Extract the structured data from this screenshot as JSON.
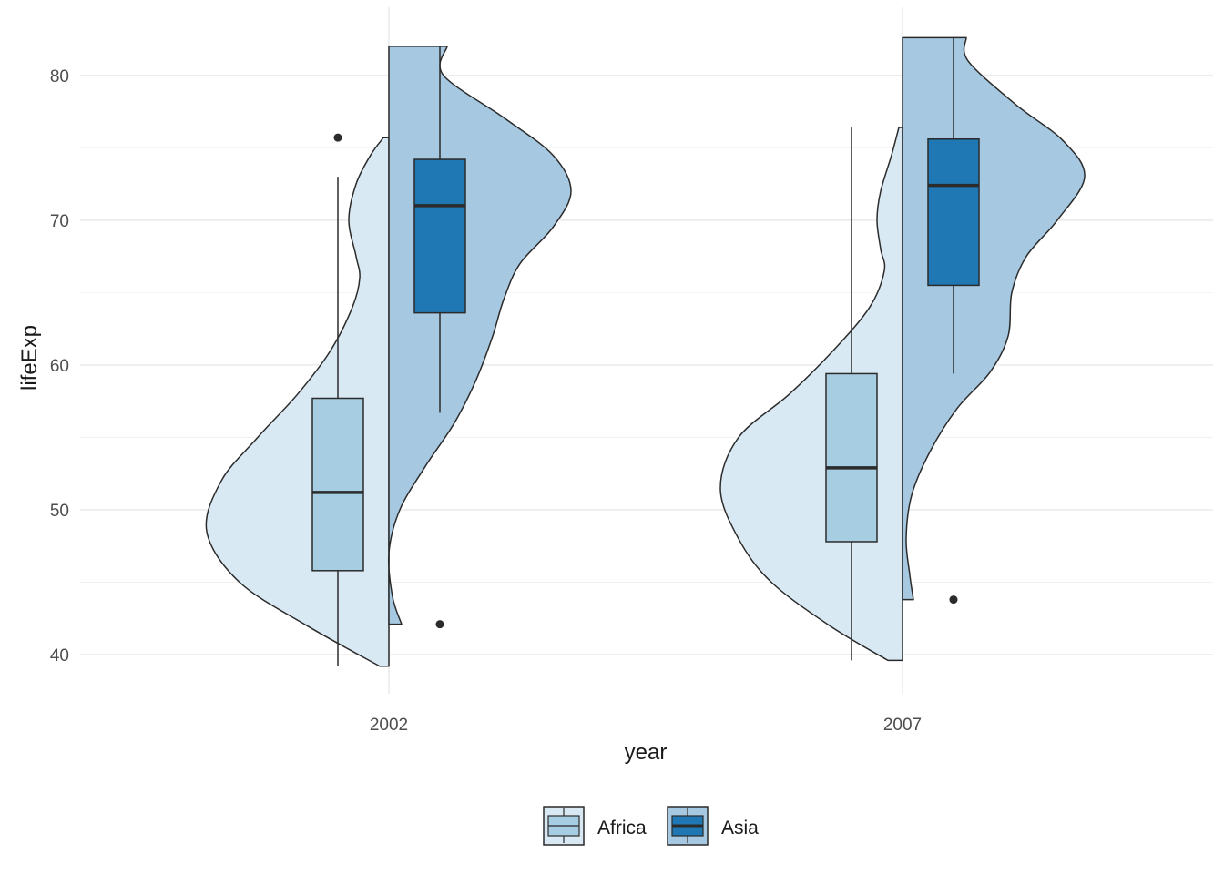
{
  "chart_data": {
    "type": "violin-box",
    "title": "",
    "xlabel": "year",
    "ylabel": "lifeExp",
    "ylim": [
      37.3,
      84.7
    ],
    "yticks": [
      40,
      50,
      60,
      70,
      80
    ],
    "grid": true,
    "legend_position": "bottom",
    "categories": [
      "2002",
      "2007"
    ],
    "series": [
      {
        "name": "Africa",
        "violin_color": "#d9e9f3",
        "box_color": "#a6cde2",
        "groups": [
          {
            "category": "2002",
            "violin_range": [
              39.2,
              75.7
            ],
            "violin_width": [
              [
                39.2,
                0.05
              ],
              [
                42,
                0.45
              ],
              [
                45,
                0.82
              ],
              [
                48.5,
                1.0
              ],
              [
                52,
                0.92
              ],
              [
                55,
                0.72
              ],
              [
                58,
                0.5
              ],
              [
                61,
                0.32
              ],
              [
                64,
                0.2
              ],
              [
                66,
                0.16
              ],
              [
                67.5,
                0.18
              ],
              [
                70,
                0.22
              ],
              [
                72.5,
                0.18
              ],
              [
                74.5,
                0.1
              ],
              [
                75.7,
                0.03
              ]
            ],
            "box": {
              "min": 39.2,
              "q1": 45.8,
              "median": 51.2,
              "q3": 57.7,
              "max": 73.0
            },
            "outliers": [
              75.7
            ]
          },
          {
            "category": "2007",
            "violin_range": [
              39.6,
              76.4
            ],
            "violin_width": [
              [
                39.6,
                0.08
              ],
              [
                42,
                0.4
              ],
              [
                45,
                0.72
              ],
              [
                48,
                0.9
              ],
              [
                51.5,
                1.0
              ],
              [
                55,
                0.9
              ],
              [
                58,
                0.62
              ],
              [
                61,
                0.38
              ],
              [
                64,
                0.18
              ],
              [
                66.5,
                0.1
              ],
              [
                68,
                0.12
              ],
              [
                70,
                0.14
              ],
              [
                72,
                0.12
              ],
              [
                74.5,
                0.06
              ],
              [
                76.4,
                0.02
              ]
            ],
            "box": {
              "min": 39.6,
              "q1": 47.8,
              "median": 52.9,
              "q3": 59.4,
              "max": 76.4
            },
            "outliers": []
          }
        ]
      },
      {
        "name": "Asia",
        "violin_color": "#a6c8e0",
        "box_color": "#1f78b4",
        "groups": [
          {
            "category": "2002",
            "violin_range": [
              42.1,
              82.0
            ],
            "violin_width": [
              [
                42.1,
                0.07
              ],
              [
                44,
                0.02
              ],
              [
                47,
                0.0
              ],
              [
                50,
                0.06
              ],
              [
                53,
                0.2
              ],
              [
                56,
                0.36
              ],
              [
                59,
                0.48
              ],
              [
                62,
                0.57
              ],
              [
                64.5,
                0.63
              ],
              [
                67,
                0.72
              ],
              [
                69.5,
                0.9
              ],
              [
                72,
                1.0
              ],
              [
                74.5,
                0.9
              ],
              [
                77,
                0.64
              ],
              [
                80,
                0.3
              ],
              [
                82,
                0.32
              ]
            ],
            "box": {
              "min": 56.7,
              "q1": 63.6,
              "median": 71.0,
              "q3": 74.2,
              "max": 82.0
            },
            "outliers": [
              42.1
            ]
          },
          {
            "category": "2007",
            "violin_range": [
              43.8,
              82.6
            ],
            "violin_width": [
              [
                43.8,
                0.06
              ],
              [
                45.5,
                0.04
              ],
              [
                48,
                0.02
              ],
              [
                51,
                0.05
              ],
              [
                54,
                0.15
              ],
              [
                57,
                0.3
              ],
              [
                59.5,
                0.48
              ],
              [
                62,
                0.58
              ],
              [
                65,
                0.6
              ],
              [
                67.5,
                0.68
              ],
              [
                70,
                0.85
              ],
              [
                73,
                1.0
              ],
              [
                75.5,
                0.88
              ],
              [
                78,
                0.62
              ],
              [
                81,
                0.36
              ],
              [
                82.6,
                0.35
              ]
            ],
            "box": {
              "min": 59.4,
              "q1": 65.5,
              "median": 72.4,
              "q3": 75.6,
              "max": 82.6
            },
            "outliers": [
              43.8
            ]
          }
        ]
      }
    ]
  }
}
